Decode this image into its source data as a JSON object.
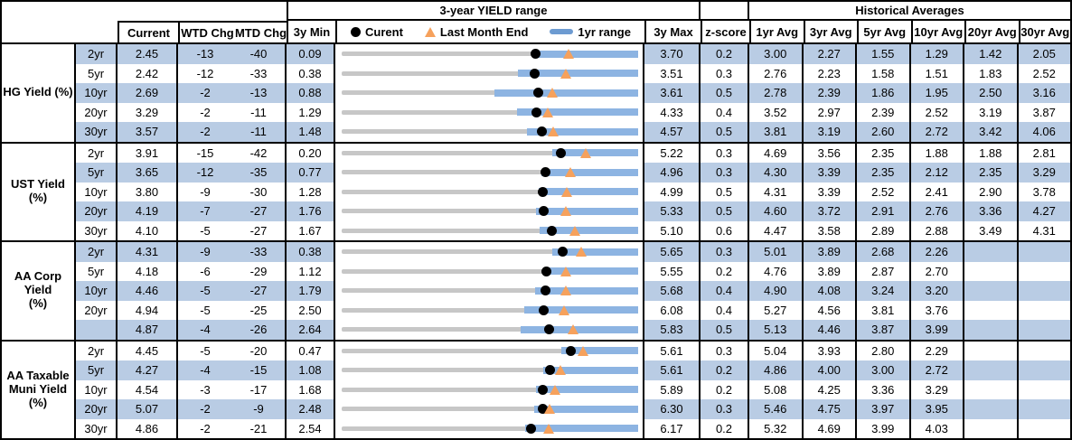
{
  "header": {
    "range_title": "3-year YIELD range",
    "hist_title": "Historical Averages",
    "col_current": "Current",
    "col_wtd": "WTD Chg",
    "col_mtd": "MTD Chg",
    "col_min": "3y Min",
    "col_max": "3y Max",
    "col_z": "z-score",
    "avg_cols": [
      "1yr Avg",
      "3yr Avg",
      "5yr Avg",
      "10yr Avg",
      "20yr Avg",
      "30yr Avg"
    ],
    "legend": {
      "current": "Curent",
      "last_month_end": "Last Month End",
      "range": "1yr range"
    }
  },
  "colors": {
    "row_shade": "#b9cce4",
    "range_bar": "#8db4e2",
    "legend_bar": "#6d9bd1",
    "track": "#c7c7c7",
    "marker_dot": "#000000",
    "marker_triangle": "#f6a15c",
    "border": "#000000"
  },
  "chart_data": {
    "type": "bullet-range-table",
    "note": "Each row is a bullet chart scaled linearly from 3y Min (left) to 3y Max (right); blue bar = 1yr range (r1lo to r1hi), black dot = current, orange triangle = last month end (lme).",
    "sections": [
      {
        "label": "HG Yield (%)",
        "rows": [
          {
            "tenor": "2yr",
            "current": "2.45",
            "wtd": "-13",
            "mtd": "-40",
            "min": "0.09",
            "max": "3.70",
            "z": "0.2",
            "avgs": [
              "3.00",
              "2.27",
              "1.55",
              "1.29",
              "1.42",
              "2.05"
            ],
            "lme": 2.85,
            "r1lo": 2.43,
            "r1hi": 3.7
          },
          {
            "tenor": "5yr",
            "current": "2.42",
            "wtd": "-12",
            "mtd": "-33",
            "min": "0.38",
            "max": "3.51",
            "z": "0.3",
            "avgs": [
              "2.76",
              "2.23",
              "1.58",
              "1.51",
              "1.83",
              "2.52"
            ],
            "lme": 2.75,
            "r1lo": 2.24,
            "r1hi": 3.51
          },
          {
            "tenor": "10yr",
            "current": "2.69",
            "wtd": "-2",
            "mtd": "-13",
            "min": "0.88",
            "max": "3.61",
            "z": "0.5",
            "avgs": [
              "2.78",
              "2.39",
              "1.86",
              "1.95",
              "2.50",
              "3.16"
            ],
            "lme": 2.82,
            "r1lo": 2.29,
            "r1hi": 3.61
          },
          {
            "tenor": "20yr",
            "current": "3.29",
            "wtd": "-2",
            "mtd": "-11",
            "min": "1.29",
            "max": "4.33",
            "z": "0.4",
            "avgs": [
              "3.52",
              "2.97",
              "2.39",
              "2.52",
              "3.19",
              "3.87"
            ],
            "lme": 3.4,
            "r1lo": 3.09,
            "r1hi": 4.33
          },
          {
            "tenor": "30yr",
            "current": "3.57",
            "wtd": "-2",
            "mtd": "-11",
            "min": "1.48",
            "max": "4.57",
            "z": "0.5",
            "avgs": [
              "3.81",
              "3.19",
              "2.60",
              "2.72",
              "3.42",
              "4.06"
            ],
            "lme": 3.68,
            "r1lo": 3.41,
            "r1hi": 4.57
          }
        ]
      },
      {
        "label": "UST Yield (%)",
        "rows": [
          {
            "tenor": "2yr",
            "current": "3.91",
            "wtd": "-15",
            "mtd": "-42",
            "min": "0.20",
            "max": "5.22",
            "z": "0.3",
            "avgs": [
              "4.69",
              "3.56",
              "2.35",
              "1.88",
              "1.88",
              "2.81"
            ],
            "lme": 4.33,
            "r1lo": 3.77,
            "r1hi": 5.22
          },
          {
            "tenor": "5yr",
            "current": "3.65",
            "wtd": "-12",
            "mtd": "-35",
            "min": "0.77",
            "max": "4.96",
            "z": "0.3",
            "avgs": [
              "4.30",
              "3.39",
              "2.35",
              "2.12",
              "2.35",
              "3.29"
            ],
            "lme": 4.0,
            "r1lo": 3.59,
            "r1hi": 4.96
          },
          {
            "tenor": "10yr",
            "current": "3.80",
            "wtd": "-9",
            "mtd": "-30",
            "min": "1.28",
            "max": "4.99",
            "z": "0.5",
            "avgs": [
              "4.31",
              "3.39",
              "2.52",
              "2.41",
              "2.90",
              "3.78"
            ],
            "lme": 4.1,
            "r1lo": 3.75,
            "r1hi": 4.99
          },
          {
            "tenor": "20yr",
            "current": "4.19",
            "wtd": "-7",
            "mtd": "-27",
            "min": "1.76",
            "max": "5.33",
            "z": "0.5",
            "avgs": [
              "4.60",
              "3.72",
              "2.91",
              "2.76",
              "3.36",
              "4.27"
            ],
            "lme": 4.46,
            "r1lo": 4.1,
            "r1hi": 5.33
          },
          {
            "tenor": "30yr",
            "current": "4.10",
            "wtd": "-5",
            "mtd": "-27",
            "min": "1.67",
            "max": "5.10",
            "z": "0.6",
            "avgs": [
              "4.47",
              "3.58",
              "2.89",
              "2.88",
              "3.49",
              "4.31"
            ],
            "lme": 4.37,
            "r1lo": 3.96,
            "r1hi": 5.1
          }
        ]
      },
      {
        "label": "AA Corp Yield\n(%)",
        "rows": [
          {
            "tenor": "2yr",
            "current": "4.31",
            "wtd": "-9",
            "mtd": "-33",
            "min": "0.38",
            "max": "5.65",
            "z": "0.3",
            "avgs": [
              "5.01",
              "3.89",
              "2.68",
              "2.26",
              "",
              ""
            ],
            "lme": 4.64,
            "r1lo": 4.13,
            "r1hi": 5.65
          },
          {
            "tenor": "5yr",
            "current": "4.18",
            "wtd": "-6",
            "mtd": "-29",
            "min": "1.12",
            "max": "5.55",
            "z": "0.2",
            "avgs": [
              "4.76",
              "3.89",
              "2.87",
              "2.70",
              "",
              ""
            ],
            "lme": 4.47,
            "r1lo": 4.13,
            "r1hi": 5.55
          },
          {
            "tenor": "10yr",
            "current": "4.46",
            "wtd": "-5",
            "mtd": "-27",
            "min": "1.79",
            "max": "5.68",
            "z": "0.4",
            "avgs": [
              "4.90",
              "4.08",
              "3.24",
              "3.20",
              "",
              ""
            ],
            "lme": 4.73,
            "r1lo": 4.33,
            "r1hi": 5.68
          },
          {
            "tenor": "20yr",
            "current": "4.94",
            "wtd": "-5",
            "mtd": "-25",
            "min": "2.50",
            "max": "6.08",
            "z": "0.4",
            "avgs": [
              "5.27",
              "4.56",
              "3.81",
              "3.76",
              "",
              ""
            ],
            "lme": 5.19,
            "r1lo": 4.71,
            "r1hi": 6.08
          },
          {
            "tenor": "",
            "current": "4.87",
            "wtd": "-4",
            "mtd": "-26",
            "min": "2.64",
            "max": "5.83",
            "z": "0.5",
            "avgs": [
              "5.13",
              "4.46",
              "3.87",
              "3.99",
              "",
              ""
            ],
            "lme": 5.13,
            "r1lo": 4.57,
            "r1hi": 5.83
          }
        ]
      },
      {
        "label": "AA Taxable\nMuni Yield\n(%)",
        "rows": [
          {
            "tenor": "2yr",
            "current": "4.45",
            "wtd": "-5",
            "mtd": "-20",
            "min": "0.47",
            "max": "5.61",
            "z": "0.3",
            "avgs": [
              "5.04",
              "3.93",
              "2.80",
              "2.29",
              "",
              ""
            ],
            "lme": 4.65,
            "r1lo": 4.28,
            "r1hi": 5.61
          },
          {
            "tenor": "5yr",
            "current": "4.27",
            "wtd": "-4",
            "mtd": "-15",
            "min": "1.08",
            "max": "5.61",
            "z": "0.2",
            "avgs": [
              "4.86",
              "4.00",
              "3.00",
              "2.72",
              "",
              ""
            ],
            "lme": 4.42,
            "r1lo": 4.16,
            "r1hi": 5.61
          },
          {
            "tenor": "10yr",
            "current": "4.54",
            "wtd": "-3",
            "mtd": "-17",
            "min": "1.68",
            "max": "5.89",
            "z": "0.2",
            "avgs": [
              "5.08",
              "4.25",
              "3.36",
              "3.29",
              "",
              ""
            ],
            "lme": 4.71,
            "r1lo": 4.44,
            "r1hi": 5.89
          },
          {
            "tenor": "20yr",
            "current": "5.07",
            "wtd": "-2",
            "mtd": "-9",
            "min": "2.48",
            "max": "6.30",
            "z": "0.3",
            "avgs": [
              "5.46",
              "4.75",
              "3.97",
              "3.95",
              "",
              ""
            ],
            "lme": 5.16,
            "r1lo": 4.96,
            "r1hi": 6.3
          },
          {
            "tenor": "30yr",
            "current": "4.86",
            "wtd": "-2",
            "mtd": "-21",
            "min": "2.54",
            "max": "6.17",
            "z": "0.2",
            "avgs": [
              "5.32",
              "4.69",
              "3.99",
              "4.03",
              "",
              ""
            ],
            "lme": 5.07,
            "r1lo": 4.79,
            "r1hi": 6.17
          }
        ]
      }
    ]
  }
}
